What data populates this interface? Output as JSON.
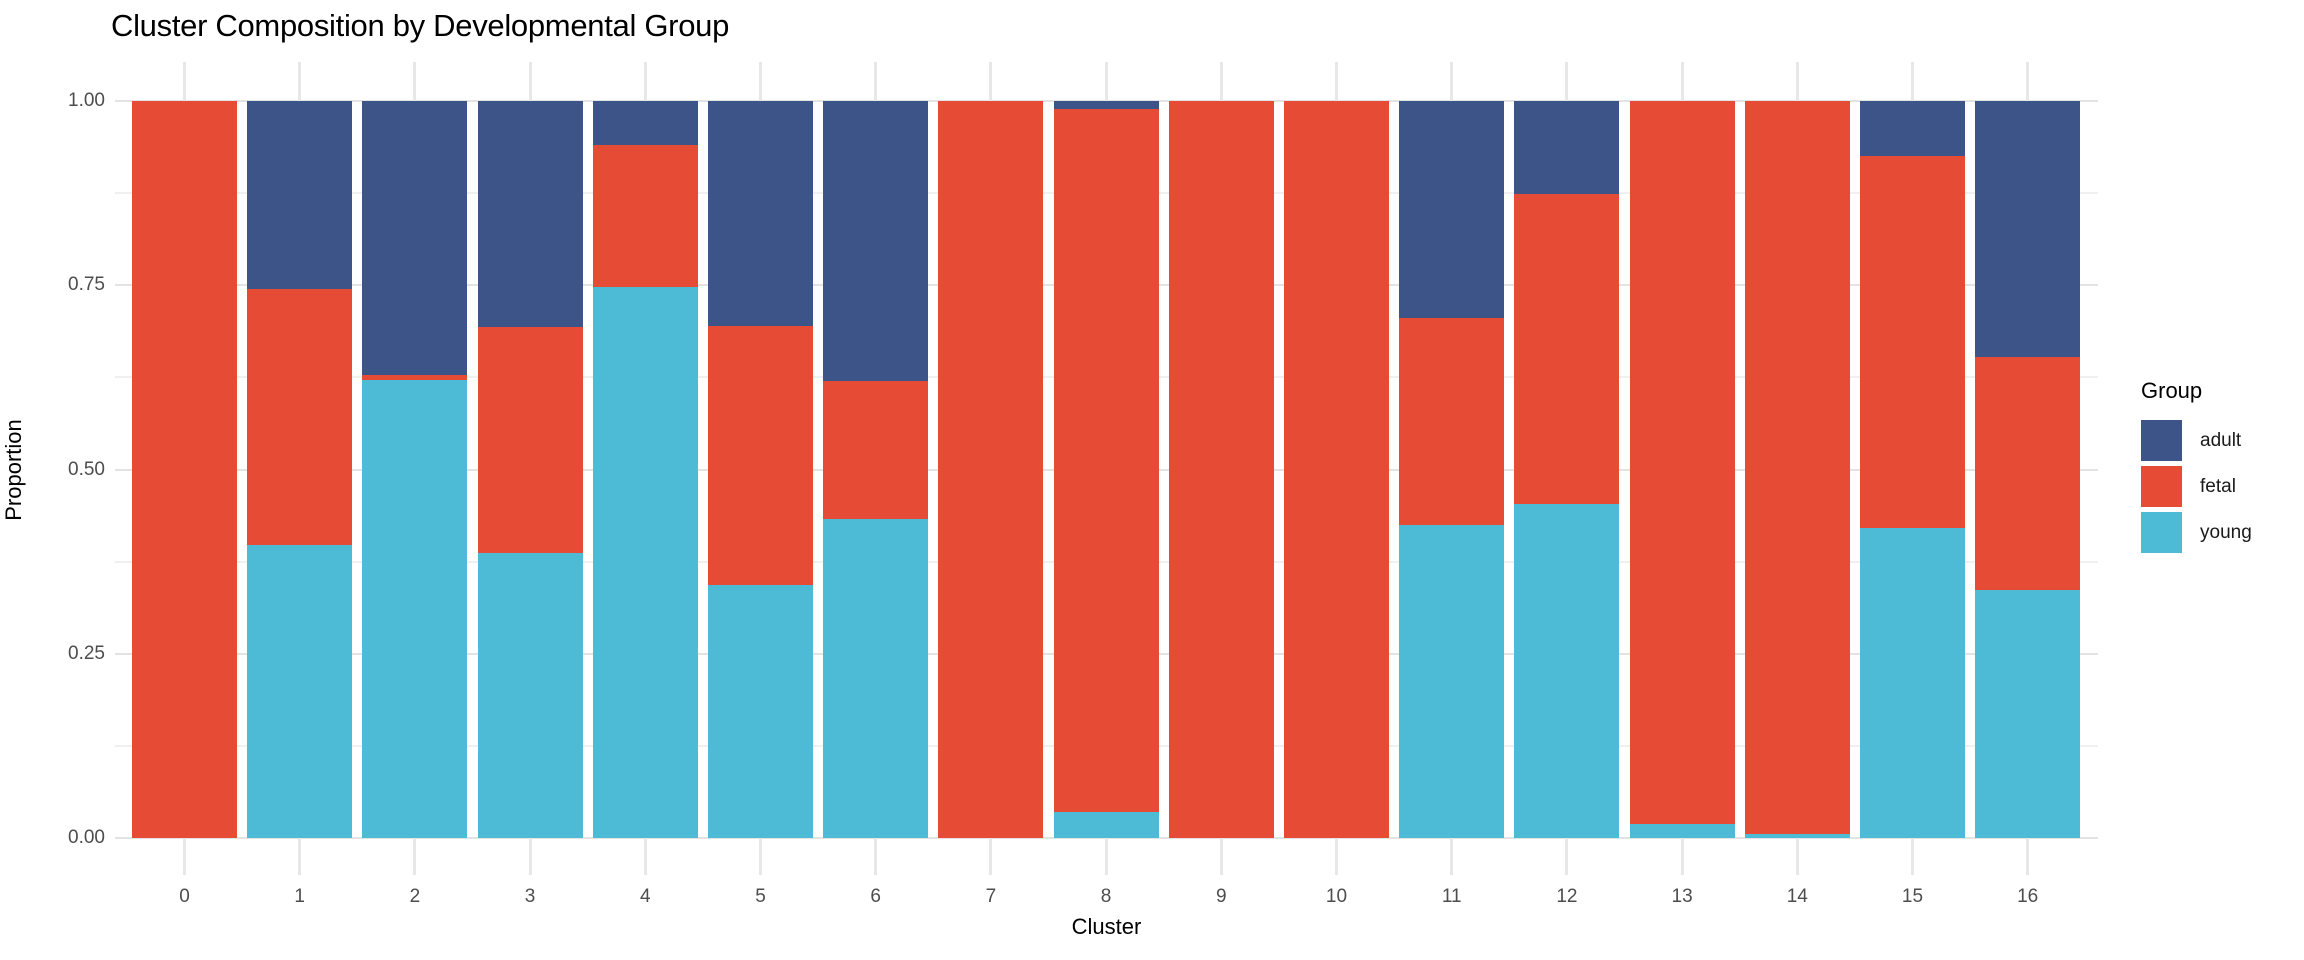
{
  "title": "Cluster Composition by Developmental Group",
  "chart_data": {
    "type": "bar",
    "stacked": true,
    "normalized": true,
    "title": "Cluster Composition by Developmental Group",
    "xlabel": "Cluster",
    "ylabel": "Proportion",
    "categories": [
      "0",
      "1",
      "2",
      "3",
      "4",
      "5",
      "6",
      "7",
      "8",
      "9",
      "10",
      "11",
      "12",
      "13",
      "14",
      "15",
      "16"
    ],
    "series": [
      {
        "name": "adult",
        "color": "#3C5488",
        "values": [
          0,
          0.255,
          0.372,
          0.307,
          0.06,
          0.305,
          0.38,
          0,
          0.011,
          0,
          0,
          0.295,
          0.126,
          0,
          0,
          0.075,
          0.348
        ]
      },
      {
        "name": "fetal",
        "color": "#E64B35",
        "values": [
          1.0,
          0.348,
          0.006,
          0.306,
          0.192,
          0.352,
          0.187,
          1.0,
          0.954,
          1.0,
          1.0,
          0.28,
          0.421,
          0.981,
          0.994,
          0.504,
          0.316
        ]
      },
      {
        "name": "young",
        "color": "#4DBBD5",
        "values": [
          0,
          0.397,
          0.622,
          0.387,
          0.748,
          0.343,
          0.433,
          0,
          0.035,
          0,
          0,
          0.425,
          0.453,
          0.019,
          0.006,
          0.421,
          0.336
        ]
      }
    ],
    "stack_order_bottom_to_top": [
      "young",
      "fetal",
      "adult"
    ],
    "ylim": [
      0,
      1
    ],
    "yticks": [
      {
        "label": "0.00",
        "value": 0
      },
      {
        "label": "0.25",
        "value": 0.25
      },
      {
        "label": "0.50",
        "value": 0.5
      },
      {
        "label": "0.75",
        "value": 0.75
      },
      {
        "label": "1.00",
        "value": 1
      }
    ],
    "minor_ytick_values": [
      0.125,
      0.375,
      0.625,
      0.875
    ],
    "grid": true,
    "legend_position": "right"
  },
  "legend": {
    "title": "Group",
    "items": [
      {
        "label": "adult",
        "color": "#3C5488"
      },
      {
        "label": "fetal",
        "color": "#E64B35"
      },
      {
        "label": "young",
        "color": "#4DBBD5"
      }
    ]
  },
  "colors": {
    "adult": "#3C5488",
    "fetal": "#E64B35",
    "young": "#4DBBD5",
    "grid_major": "#E3E3E3",
    "grid_minor": "#F0F0F0",
    "tick_label": "#4D4D4D",
    "axis_title": "#000000",
    "background": "#FFFFFF"
  }
}
